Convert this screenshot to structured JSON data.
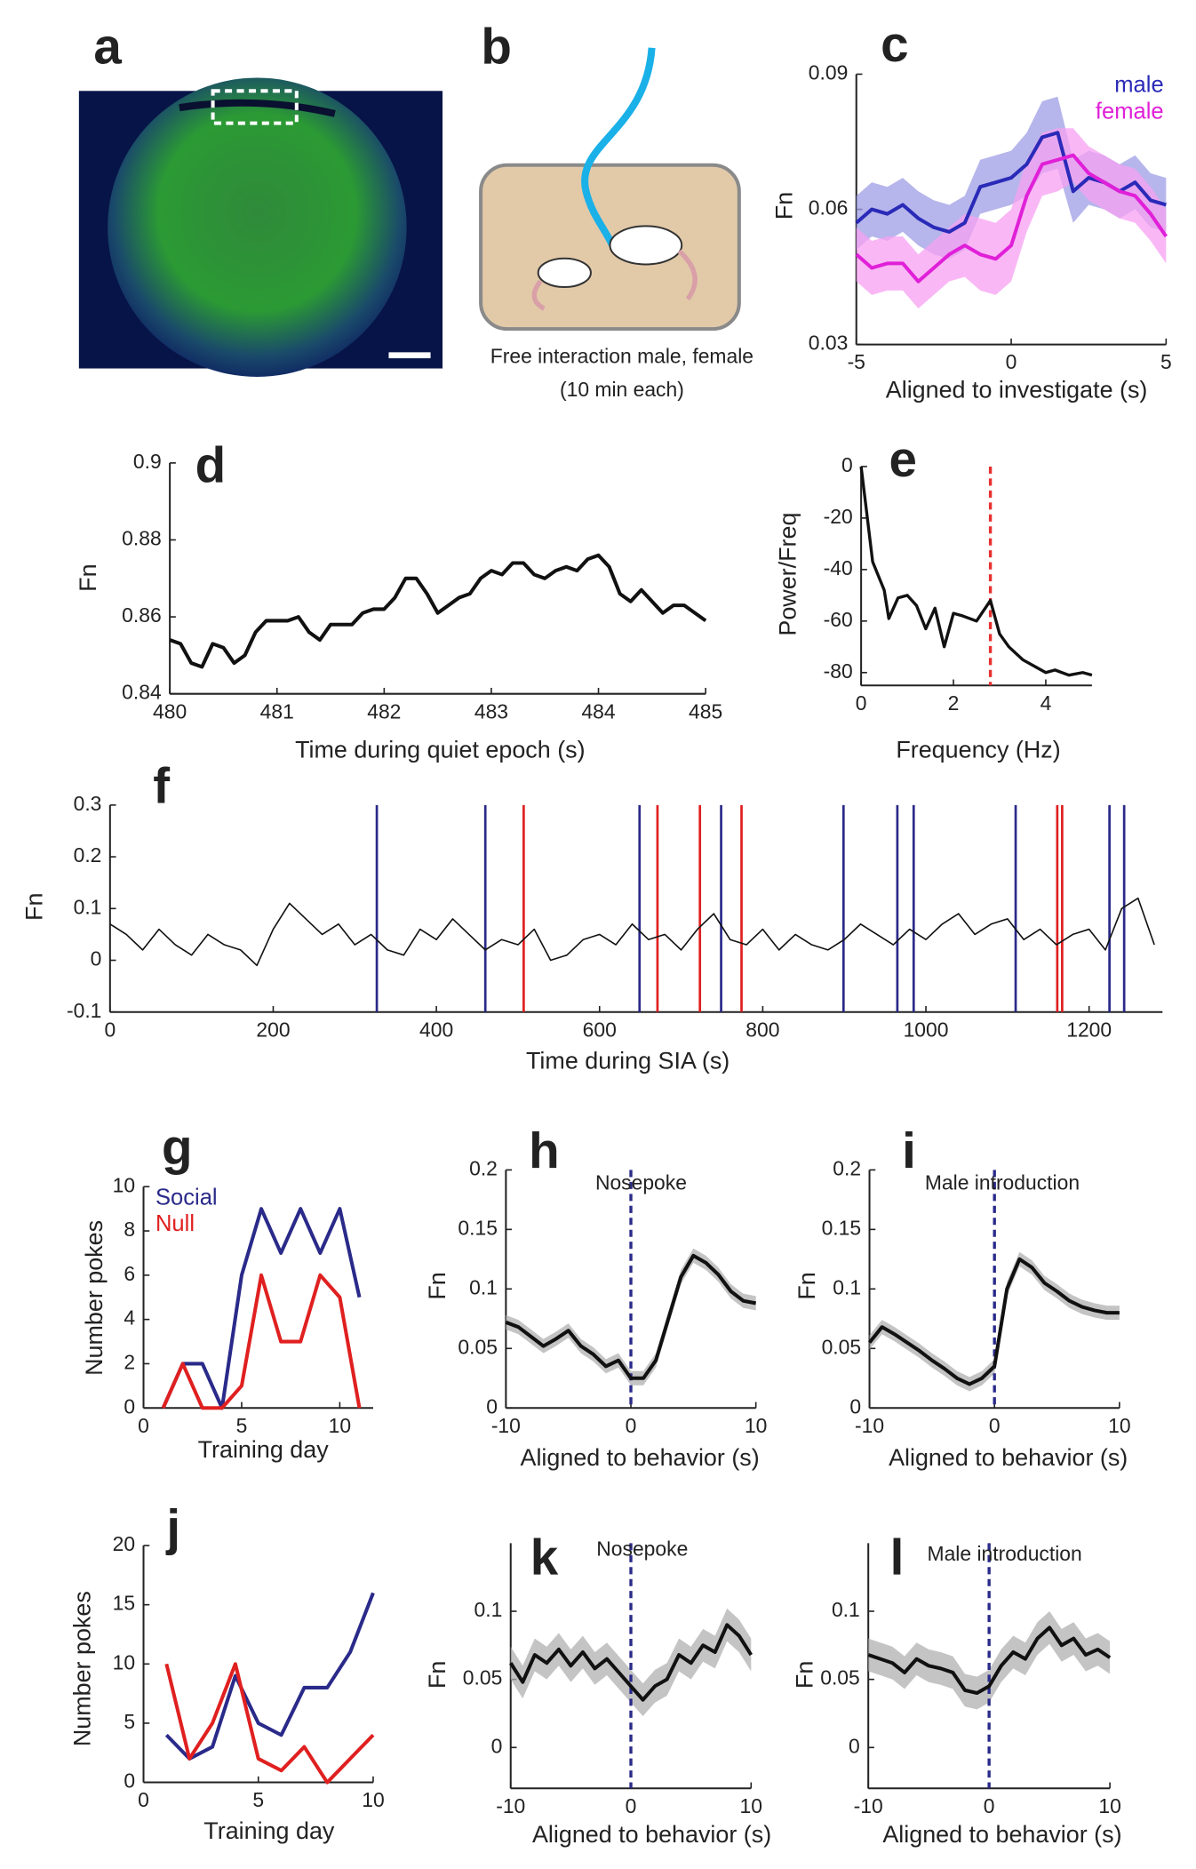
{
  "panel_a": {
    "label": "a"
  },
  "panel_b": {
    "label": "b",
    "caption": [
      "Free interaction male, female",
      "(10 min each)"
    ]
  },
  "chart_data": [
    {
      "type": "line",
      "label": "c",
      "xlabel": "Aligned to investigate (s)",
      "ylabel": "Fn",
      "xlim": [
        -5,
        5
      ],
      "ylim": [
        0.03,
        0.09
      ],
      "xticks": [
        -5,
        0,
        5
      ],
      "yticks": [
        0.03,
        0.06,
        0.09
      ],
      "legend": "upper right",
      "x": [
        -5,
        -4.5,
        -4,
        -3.5,
        -3,
        -2.5,
        -2,
        -1.5,
        -1,
        -0.5,
        0,
        0.5,
        1,
        1.5,
        2,
        2.5,
        3,
        3.5,
        4,
        4.5,
        5
      ],
      "series": [
        {
          "name": "male",
          "color": "#2a2ab8",
          "band_color": "#9d9de6",
          "values": [
            0.057,
            0.06,
            0.059,
            0.061,
            0.058,
            0.056,
            0.055,
            0.057,
            0.065,
            0.066,
            0.067,
            0.07,
            0.076,
            0.077,
            0.064,
            0.067,
            0.066,
            0.064,
            0.066,
            0.062,
            0.061
          ],
          "errors": [
            0.006,
            0.006,
            0.006,
            0.006,
            0.006,
            0.006,
            0.006,
            0.006,
            0.006,
            0.006,
            0.006,
            0.007,
            0.008,
            0.008,
            0.007,
            0.006,
            0.006,
            0.006,
            0.006,
            0.006,
            0.006
          ]
        },
        {
          "name": "female",
          "color": "#e020d8",
          "band_color": "#f7a0f2",
          "values": [
            0.05,
            0.047,
            0.048,
            0.048,
            0.044,
            0.047,
            0.05,
            0.052,
            0.05,
            0.049,
            0.052,
            0.063,
            0.07,
            0.071,
            0.072,
            0.068,
            0.066,
            0.064,
            0.063,
            0.059,
            0.054
          ],
          "errors": [
            0.006,
            0.006,
            0.006,
            0.006,
            0.006,
            0.006,
            0.006,
            0.007,
            0.008,
            0.008,
            0.008,
            0.008,
            0.007,
            0.007,
            0.006,
            0.006,
            0.006,
            0.006,
            0.006,
            0.006,
            0.006
          ]
        }
      ]
    },
    {
      "type": "line",
      "label": "d",
      "xlabel": "Time during quiet epoch (s)",
      "ylabel": "Fn",
      "xlim": [
        480,
        485
      ],
      "ylim": [
        0.84,
        0.9
      ],
      "xticks": [
        480,
        481,
        482,
        483,
        484,
        485
      ],
      "yticks": [
        0.84,
        0.86,
        0.88,
        0.9
      ],
      "x": [
        480,
        480.1,
        480.2,
        480.3,
        480.4,
        480.5,
        480.6,
        480.7,
        480.8,
        480.9,
        481,
        481.1,
        481.2,
        481.3,
        481.4,
        481.5,
        481.6,
        481.7,
        481.8,
        481.9,
        482,
        482.1,
        482.2,
        482.3,
        482.4,
        482.5,
        482.6,
        482.7,
        482.8,
        482.9,
        483,
        483.1,
        483.2,
        483.3,
        483.4,
        483.5,
        483.6,
        483.7,
        483.8,
        483.9,
        484,
        484.1,
        484.2,
        484.3,
        484.4,
        484.5,
        484.6,
        484.7,
        484.8,
        484.9,
        485
      ],
      "series": [
        {
          "color": "#111111",
          "values": [
            0.854,
            0.853,
            0.848,
            0.847,
            0.853,
            0.852,
            0.848,
            0.85,
            0.856,
            0.859,
            0.859,
            0.859,
            0.86,
            0.856,
            0.854,
            0.858,
            0.858,
            0.858,
            0.861,
            0.862,
            0.862,
            0.865,
            0.87,
            0.87,
            0.866,
            0.861,
            0.863,
            0.865,
            0.866,
            0.87,
            0.872,
            0.871,
            0.874,
            0.874,
            0.871,
            0.87,
            0.872,
            0.873,
            0.872,
            0.875,
            0.876,
            0.873,
            0.866,
            0.864,
            0.867,
            0.864,
            0.861,
            0.863,
            0.863,
            0.861,
            0.859
          ]
        }
      ]
    },
    {
      "type": "line",
      "label": "e",
      "xlabel": "Frequency (Hz)",
      "ylabel": "Power/Freq",
      "xlim": [
        0,
        5
      ],
      "ylim": [
        -85,
        0
      ],
      "xticks": [
        0,
        2,
        4
      ],
      "yticks": [
        0,
        -20,
        -40,
        -60,
        -80
      ],
      "x": [
        0,
        0.25,
        0.5,
        0.6,
        0.8,
        1,
        1.2,
        1.4,
        1.6,
        1.8,
        2,
        2.2,
        2.5,
        2.8,
        3,
        3.2,
        3.5,
        3.8,
        4,
        4.2,
        4.5,
        4.8,
        5
      ],
      "series": [
        {
          "color": "#111111",
          "values": [
            0,
            -37,
            -48,
            -59,
            -51,
            -50,
            -54,
            -63,
            -55,
            -70,
            -57,
            -58,
            -60,
            -52,
            -65,
            -70,
            -75,
            -78,
            -80,
            -79,
            -81,
            -80,
            -81
          ]
        }
      ],
      "vlines": [
        {
          "color": "#e83030",
          "dashed": true,
          "values": [
            2.8
          ]
        }
      ]
    },
    {
      "type": "line",
      "label": "f",
      "xlabel": "Time during SIA (s)",
      "ylabel": "Fn",
      "xlim": [
        0,
        1290
      ],
      "ylim": [
        -0.1,
        0.3
      ],
      "xticks": [
        0,
        200,
        400,
        600,
        800,
        1000,
        1200
      ],
      "yticks": [
        -0.1,
        0,
        0.1,
        0.2,
        0.3
      ],
      "x": [
        0,
        20,
        40,
        60,
        80,
        100,
        120,
        140,
        160,
        180,
        200,
        220,
        240,
        260,
        280,
        300,
        320,
        340,
        360,
        380,
        400,
        420,
        440,
        460,
        480,
        500,
        520,
        540,
        560,
        580,
        600,
        620,
        640,
        660,
        680,
        700,
        720,
        740,
        760,
        780,
        800,
        820,
        840,
        860,
        880,
        900,
        920,
        940,
        960,
        980,
        1000,
        1020,
        1040,
        1060,
        1080,
        1100,
        1120,
        1140,
        1160,
        1180,
        1200,
        1220,
        1240,
        1260,
        1280
      ],
      "series": [
        {
          "color": "#111111",
          "values": [
            0.07,
            0.05,
            0.02,
            0.06,
            0.03,
            0.01,
            0.05,
            0.03,
            0.02,
            -0.01,
            0.06,
            0.11,
            0.08,
            0.05,
            0.07,
            0.03,
            0.05,
            0.02,
            0.01,
            0.06,
            0.04,
            0.08,
            0.05,
            0.02,
            0.04,
            0.03,
            0.06,
            0,
            0.01,
            0.04,
            0.05,
            0.03,
            0.07,
            0.04,
            0.05,
            0.02,
            0.06,
            0.09,
            0.04,
            0.03,
            0.06,
            0.02,
            0.05,
            0.03,
            0.02,
            0.04,
            0.07,
            0.05,
            0.03,
            0.06,
            0.04,
            0.07,
            0.09,
            0.05,
            0.07,
            0.08,
            0.04,
            0.06,
            0.03,
            0.05,
            0.06,
            0.02,
            0.1,
            0.12,
            0.03
          ]
        }
      ],
      "vlines": [
        {
          "color": "#2a2a8a",
          "values": [
            327,
            460,
            649,
            749,
            899,
            965,
            985,
            1110,
            1225,
            1243
          ]
        },
        {
          "color": "#e02020",
          "values": [
            507,
            671,
            723,
            774,
            1161,
            1167
          ]
        }
      ]
    },
    {
      "type": "line",
      "label": "g",
      "xlabel": "Training day",
      "ylabel": "Number pokes",
      "xlim": [
        0,
        11.7
      ],
      "ylim": [
        0,
        10
      ],
      "xticks": [
        0,
        5,
        10
      ],
      "yticks": [
        0,
        2,
        4,
        6,
        8,
        10
      ],
      "legend": "upper left",
      "x": [
        1,
        2,
        3,
        4,
        5,
        6,
        7,
        8,
        9,
        10,
        11
      ],
      "series": [
        {
          "name": "Social",
          "color": "#2a2a8a",
          "values": [
            0,
            2,
            2,
            0,
            6,
            9,
            7,
            9,
            7,
            9,
            5
          ]
        },
        {
          "name": "Null",
          "color": "#e02020",
          "values": [
            0,
            2,
            0,
            0,
            1,
            6,
            3,
            3,
            6,
            5,
            0
          ]
        }
      ]
    },
    {
      "type": "line",
      "label": "h",
      "title": "Nosepoke",
      "xlabel": "Aligned to behavior (s)",
      "ylabel": "Fn",
      "xlim": [
        -10,
        10
      ],
      "ylim": [
        0,
        0.2
      ],
      "xticks": [
        -10,
        0,
        10
      ],
      "yticks": [
        0,
        0.05,
        0.1,
        0.15,
        0.2
      ],
      "x": [
        -10,
        -9,
        -8,
        -7,
        -6,
        -5,
        -4,
        -3,
        -2,
        -1,
        0,
        1,
        2,
        3,
        4,
        5,
        6,
        7,
        8,
        9,
        10
      ],
      "series": [
        {
          "color": "#111111",
          "band_color": "#b0b0b0",
          "values": [
            0.072,
            0.068,
            0.06,
            0.052,
            0.058,
            0.065,
            0.052,
            0.045,
            0.035,
            0.04,
            0.025,
            0.025,
            0.04,
            0.075,
            0.11,
            0.128,
            0.122,
            0.112,
            0.098,
            0.09,
            0.088
          ],
          "errors": [
            0.006,
            0.006,
            0.006,
            0.006,
            0.006,
            0.006,
            0.006,
            0.006,
            0.006,
            0.006,
            0.006,
            0.006,
            0.006,
            0.006,
            0.006,
            0.006,
            0.006,
            0.006,
            0.006,
            0.006,
            0.006
          ]
        }
      ],
      "vlines": [
        {
          "color": "#2a2a8a",
          "dashed": true,
          "values": [
            0
          ]
        }
      ]
    },
    {
      "type": "line",
      "label": "i",
      "title": "Male introduction",
      "xlabel": "Aligned to behavior (s)",
      "ylabel": "Fn",
      "xlim": [
        -10,
        10
      ],
      "ylim": [
        0,
        0.2
      ],
      "xticks": [
        -10,
        0,
        10
      ],
      "yticks": [
        0,
        0.05,
        0.1,
        0.15,
        0.2
      ],
      "x": [
        -10,
        -9,
        -8,
        -7,
        -6,
        -5,
        -4,
        -3,
        -2,
        -1,
        0,
        1,
        2,
        3,
        4,
        5,
        6,
        7,
        8,
        9,
        10
      ],
      "series": [
        {
          "color": "#111111",
          "band_color": "#b0b0b0",
          "values": [
            0.055,
            0.068,
            0.062,
            0.055,
            0.048,
            0.04,
            0.033,
            0.025,
            0.02,
            0.025,
            0.035,
            0.1,
            0.125,
            0.118,
            0.105,
            0.098,
            0.09,
            0.085,
            0.082,
            0.08,
            0.08
          ],
          "errors": [
            0.006,
            0.006,
            0.006,
            0.006,
            0.006,
            0.006,
            0.006,
            0.006,
            0.006,
            0.006,
            0.006,
            0.006,
            0.006,
            0.006,
            0.006,
            0.006,
            0.006,
            0.006,
            0.006,
            0.006,
            0.006
          ]
        }
      ],
      "vlines": [
        {
          "color": "#2a2a8a",
          "dashed": true,
          "values": [
            0
          ]
        }
      ]
    },
    {
      "type": "line",
      "label": "j",
      "xlabel": "Training day",
      "ylabel": "Number pokes",
      "xlim": [
        0,
        10
      ],
      "ylim": [
        0,
        20
      ],
      "xticks": [
        0,
        5,
        10
      ],
      "yticks": [
        0,
        5,
        10,
        15,
        20
      ],
      "x": [
        1,
        2,
        3,
        4,
        5,
        6,
        7,
        8,
        9,
        10
      ],
      "series": [
        {
          "color": "#2a2a8a",
          "values": [
            4,
            2,
            3,
            9,
            5,
            4,
            8,
            8,
            11,
            16
          ]
        },
        {
          "color": "#e02020",
          "values": [
            10,
            2,
            5,
            10,
            2,
            1,
            3,
            0,
            2,
            4
          ]
        }
      ]
    },
    {
      "type": "line",
      "label": "k",
      "title": "Nosepoke",
      "xlabel": "Aligned to behavior (s)",
      "ylabel": "Fn",
      "xlim": [
        -10,
        10
      ],
      "ylim": [
        -0.03,
        0.15
      ],
      "xticks": [
        -10,
        0,
        10
      ],
      "yticks": [
        0,
        0.05,
        0.1
      ],
      "x": [
        -10,
        -9,
        -8,
        -7,
        -6,
        -5,
        -4,
        -3,
        -2,
        -1,
        0,
        1,
        2,
        3,
        4,
        5,
        6,
        7,
        8,
        9,
        10
      ],
      "series": [
        {
          "color": "#111111",
          "band_color": "#b0b0b0",
          "values": [
            0.062,
            0.048,
            0.068,
            0.062,
            0.072,
            0.06,
            0.07,
            0.058,
            0.065,
            0.055,
            0.045,
            0.035,
            0.045,
            0.05,
            0.068,
            0.062,
            0.075,
            0.07,
            0.09,
            0.082,
            0.068
          ],
          "errors": [
            0.012,
            0.012,
            0.012,
            0.012,
            0.012,
            0.012,
            0.012,
            0.012,
            0.012,
            0.012,
            0.012,
            0.012,
            0.012,
            0.012,
            0.012,
            0.012,
            0.012,
            0.012,
            0.012,
            0.012,
            0.012
          ]
        }
      ],
      "vlines": [
        {
          "color": "#2a2a8a",
          "dashed": true,
          "values": [
            0
          ]
        }
      ]
    },
    {
      "type": "line",
      "label": "l",
      "title": "Male introduction",
      "xlabel": "Aligned to behavior (s)",
      "ylabel": "Fn",
      "xlim": [
        -10,
        10
      ],
      "ylim": [
        -0.03,
        0.15
      ],
      "xticks": [
        -10,
        0,
        10
      ],
      "yticks": [
        0,
        0.05,
        0.1
      ],
      "x": [
        -10,
        -9,
        -8,
        -7,
        -6,
        -5,
        -4,
        -3,
        -2,
        -1,
        0,
        1,
        2,
        3,
        4,
        5,
        6,
        7,
        8,
        9,
        10
      ],
      "series": [
        {
          "color": "#111111",
          "band_color": "#b0b0b0",
          "values": [
            0.068,
            0.065,
            0.062,
            0.055,
            0.065,
            0.06,
            0.058,
            0.055,
            0.042,
            0.04,
            0.045,
            0.06,
            0.07,
            0.065,
            0.08,
            0.088,
            0.075,
            0.08,
            0.068,
            0.072,
            0.066
          ],
          "errors": [
            0.012,
            0.012,
            0.012,
            0.012,
            0.012,
            0.012,
            0.012,
            0.012,
            0.012,
            0.012,
            0.012,
            0.012,
            0.012,
            0.012,
            0.012,
            0.012,
            0.012,
            0.012,
            0.012,
            0.012,
            0.012
          ]
        }
      ],
      "vlines": [
        {
          "color": "#2a2a8a",
          "dashed": true,
          "values": [
            0
          ]
        }
      ]
    }
  ]
}
